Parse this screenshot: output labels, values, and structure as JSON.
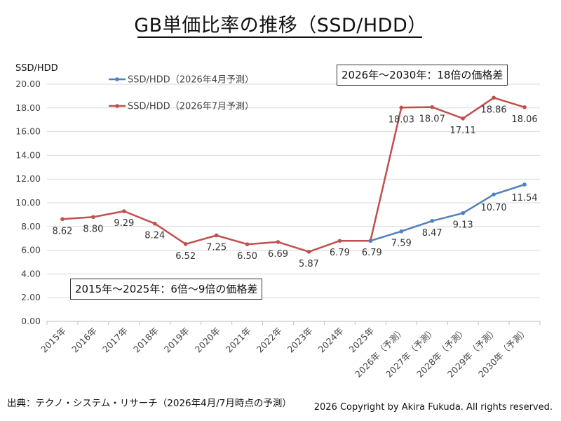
{
  "page": {
    "title": "GB単価比率の推移（SSD/HDD）",
    "source": "出典：テクノ・システム・リサーチ（2026年4月/7月時点の予測）",
    "copyright": "2026 Copyright by Akira Fukuda.  All rights reserved.",
    "annotation_top": "2026年～2030年：18倍の価格差",
    "annotation_bottom": "2015年～2025年：6倍～9倍の価格差"
  },
  "chart_data": {
    "type": "line",
    "title": "GB単価比率の推移（SSD/HDD）",
    "ylabel": "SSD/HDD",
    "xlabel": "",
    "ylim": [
      0,
      20
    ],
    "yticks": [
      "0.00",
      "2.00",
      "4.00",
      "6.00",
      "8.00",
      "10.00",
      "12.00",
      "14.00",
      "16.00",
      "18.00",
      "20.00"
    ],
    "grid": true,
    "legend_position": "top-left",
    "categories": [
      "2015年",
      "2016年",
      "2017年",
      "2018年",
      "2019年",
      "2020年",
      "2021年",
      "2022年",
      "2023年",
      "2024年",
      "2025年",
      "2026年（予測）",
      "2027年（予測）",
      "2028年（予測）",
      "2029年（予測）",
      "2030年（予測）"
    ],
    "series": [
      {
        "name": "SSD/HDD（2026年4月予測）",
        "color": "#4f81bd",
        "values": [
          null,
          null,
          null,
          null,
          null,
          null,
          null,
          null,
          null,
          null,
          6.79,
          7.59,
          8.47,
          9.13,
          10.7,
          11.54
        ],
        "labels": [
          null,
          null,
          null,
          null,
          null,
          null,
          null,
          null,
          null,
          null,
          null,
          "7.59",
          "8.47",
          "9.13",
          "10.70",
          "11.54"
        ]
      },
      {
        "name": "SSD/HDD（2026年7月予測）",
        "color": "#c0504d",
        "values": [
          8.62,
          8.8,
          9.29,
          8.24,
          6.52,
          7.25,
          6.5,
          6.69,
          5.87,
          6.79,
          6.79,
          18.03,
          18.07,
          17.11,
          18.86,
          18.06
        ],
        "labels": [
          "8.62",
          "8.80",
          "9.29",
          "8.24",
          "6.52",
          "7.25",
          "6.50",
          "6.69",
          "5.87",
          "6.79",
          "6.79",
          "18.03",
          "18.07",
          "17.11",
          "18.86",
          "18.06"
        ]
      }
    ]
  }
}
